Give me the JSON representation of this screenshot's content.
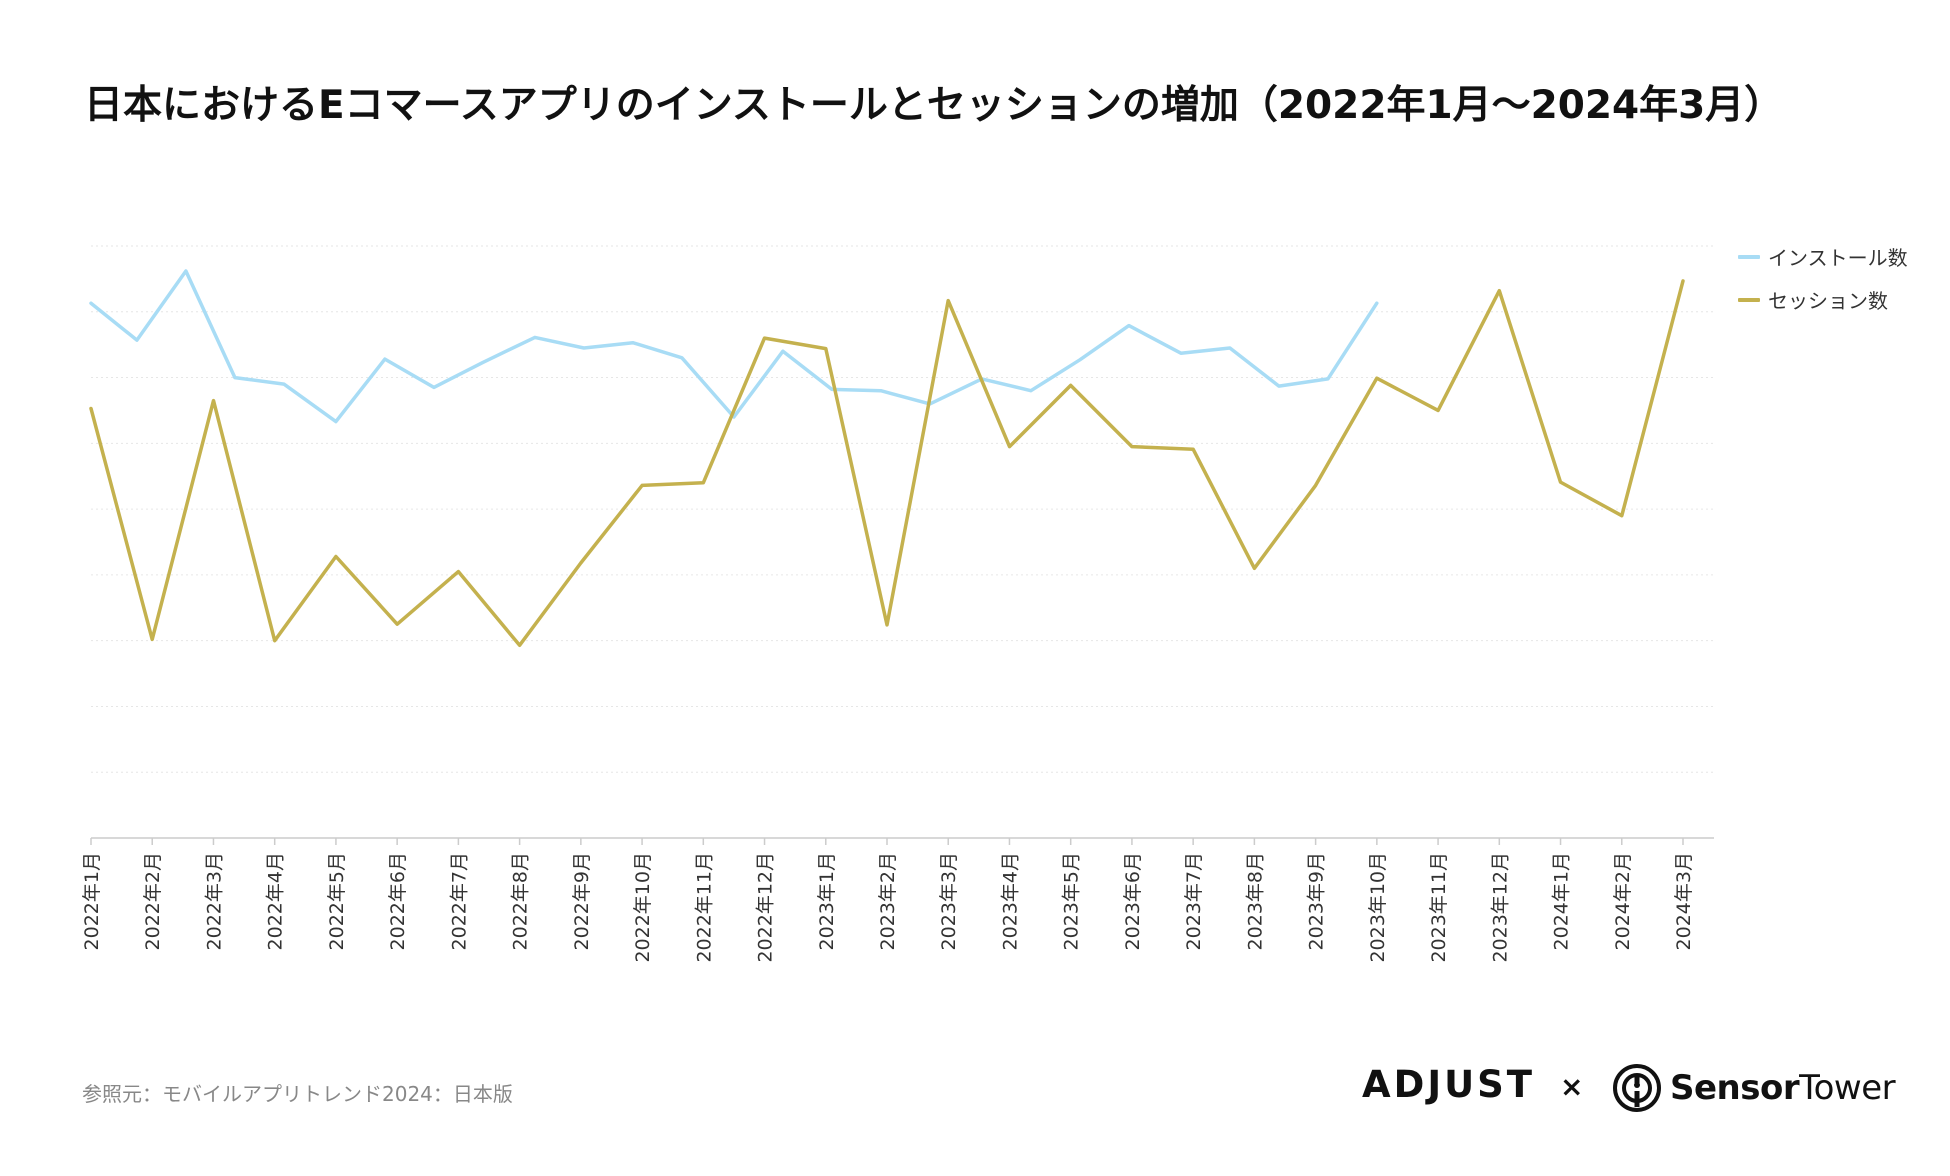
{
  "title": "日本におけるEコマースアプリのインストールとセッションの増加（2022年1月〜2024年3月）",
  "source": "参照元：モバイルアプリトレンド2024：日本版",
  "brands": {
    "adjust": "ADJUST",
    "separator": "×",
    "sensor": "Sensor",
    "tower": "Tower"
  },
  "colors": {
    "installs": "#a8dcf5",
    "sessions": "#c4b14e",
    "grid": "#e6e6e6",
    "axis": "#cccccc"
  },
  "chart_data": {
    "type": "line",
    "title": "日本におけるEコマースアプリのインストールとセッションの増加（2022年1月〜2024年3月）",
    "xlabel": "",
    "ylabel": "",
    "y_tick_labels_shown": false,
    "grid": "horizontal-dotted",
    "legend_position": "top-right",
    "ylim": [
      0,
      9
    ],
    "categories": [
      "2022年1月",
      "2022年2月",
      "2022年3月",
      "2022年4月",
      "2022年5月",
      "2022年6月",
      "2022年7月",
      "2022年8月",
      "2022年9月",
      "2022年10月",
      "2022年11月",
      "2022年12月",
      "2023年1月",
      "2023年2月",
      "2023年3月",
      "2023年4月",
      "2023年5月",
      "2023年6月",
      "2023年7月",
      "2023年8月",
      "2023年9月",
      "2023年10月",
      "2023年11月",
      "2023年12月",
      "2024年1月",
      "2024年2月",
      "2024年3月"
    ],
    "series": [
      {
        "name": "インストール数",
        "color": "#a8dcf5",
        "points": [
          {
            "x": 0,
            "y": 8.13
          },
          {
            "x": 0.75,
            "y": 7.57
          },
          {
            "x": 1.55,
            "y": 8.62
          },
          {
            "x": 2.35,
            "y": 7.0
          },
          {
            "x": 3.15,
            "y": 6.9
          },
          {
            "x": 4.0,
            "y": 6.33
          },
          {
            "x": 4.8,
            "y": 7.28
          },
          {
            "x": 5.6,
            "y": 6.85
          },
          {
            "x": 6.4,
            "y": 7.23
          },
          {
            "x": 7.25,
            "y": 7.61
          },
          {
            "x": 8.05,
            "y": 7.45
          },
          {
            "x": 8.85,
            "y": 7.53
          },
          {
            "x": 9.65,
            "y": 7.3
          },
          {
            "x": 10.5,
            "y": 6.4
          },
          {
            "x": 11.3,
            "y": 7.4
          },
          {
            "x": 12.1,
            "y": 6.82
          },
          {
            "x": 12.9,
            "y": 6.8
          },
          {
            "x": 13.7,
            "y": 6.6
          },
          {
            "x": 14.55,
            "y": 6.98
          },
          {
            "x": 15.35,
            "y": 6.8
          },
          {
            "x": 16.15,
            "y": 7.27
          },
          {
            "x": 16.95,
            "y": 7.79
          },
          {
            "x": 17.8,
            "y": 7.37
          },
          {
            "x": 18.6,
            "y": 7.45
          },
          {
            "x": 19.4,
            "y": 6.87
          },
          {
            "x": 20.2,
            "y": 6.98
          },
          {
            "x": 21.0,
            "y": 8.13
          }
        ]
      },
      {
        "name": "セッション数",
        "color": "#c4b14e",
        "values": [
          6.53,
          3.02,
          6.65,
          3.0,
          4.28,
          3.25,
          4.05,
          2.93,
          4.18,
          5.36,
          5.4,
          7.6,
          7.44,
          3.24,
          8.17,
          5.95,
          6.88,
          5.95,
          5.91,
          4.1,
          5.36,
          6.99,
          6.5,
          8.32,
          5.41,
          4.9,
          8.47
        ]
      }
    ]
  }
}
